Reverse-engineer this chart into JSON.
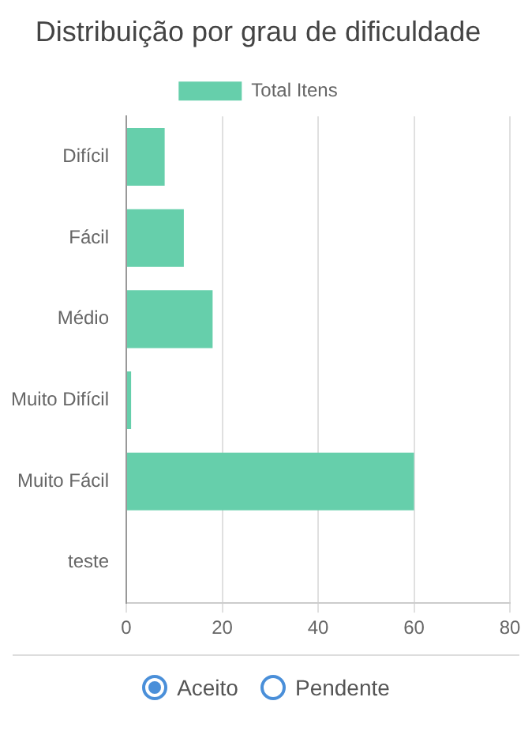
{
  "chart_data": {
    "type": "bar",
    "orientation": "horizontal",
    "title": "Distribuição por grau de dificuldade",
    "categories": [
      "Difícil",
      "Fácil",
      "Médio",
      "Muito Difícil",
      "Muito Fácil",
      "teste"
    ],
    "series": [
      {
        "name": "Total Itens",
        "color": "#66cfab",
        "values": [
          8,
          12,
          18,
          1,
          60,
          0
        ]
      }
    ],
    "xlim": [
      0,
      80
    ],
    "xticks": [
      0,
      20,
      40,
      60,
      80
    ],
    "grid": "x",
    "legend": "top",
    "annotations": [
      "Aceito",
      "Pendente"
    ]
  }
}
